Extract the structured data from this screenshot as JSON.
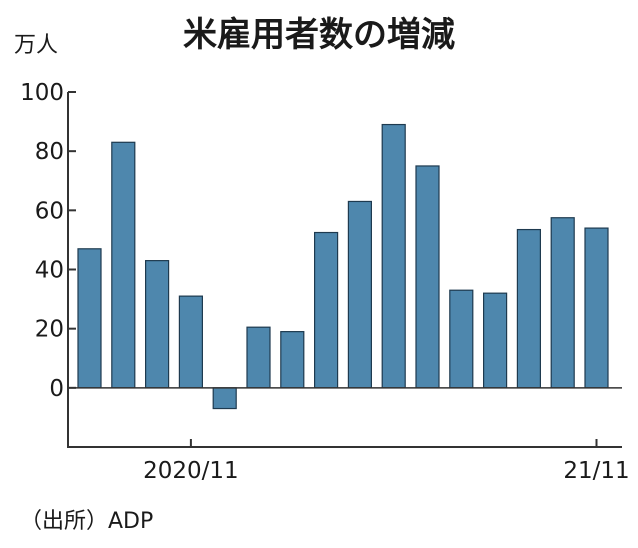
{
  "chart_data": {
    "type": "bar",
    "title": "米雇用者数の増減",
    "unit_label": "万人",
    "source": "（出所）ADP",
    "ylim": [
      -20,
      100
    ],
    "yticks": [
      "100",
      "80",
      "60",
      "40",
      "20",
      "0"
    ],
    "x_tick_labels": [
      {
        "label": "2020/11",
        "index": 3
      },
      {
        "label": "21/11",
        "index": 15
      }
    ],
    "values": [
      47,
      83,
      43,
      31,
      -7,
      20.5,
      19,
      52.5,
      63,
      89,
      75,
      33,
      32,
      53.5,
      57.5,
      54
    ],
    "grid": false,
    "bar_color": "#4e87ad"
  }
}
